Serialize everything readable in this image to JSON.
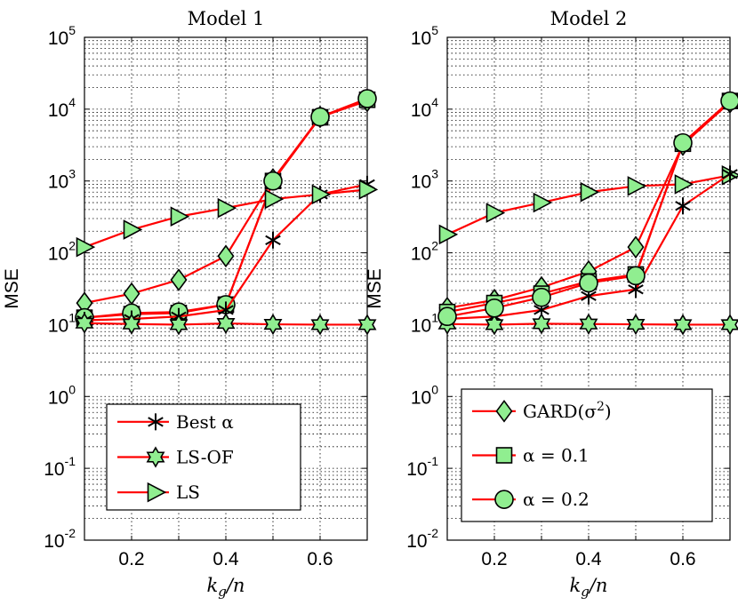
{
  "chart_data": [
    {
      "type": "line",
      "title": "Model 1",
      "xlabel": "k_g/n",
      "ylabel": "MSE",
      "yscale": "log",
      "xlim": [
        0.1,
        0.7
      ],
      "ylim": [
        0.01,
        100000
      ],
      "xticks": [
        "0.2",
        "0.4",
        "0.6"
      ],
      "yticks": [
        {
          "base": "10",
          "exp": "-2"
        },
        {
          "base": "10",
          "exp": "-1"
        },
        {
          "base": "10",
          "exp": "0"
        },
        {
          "base": "10",
          "exp": "1"
        },
        {
          "base": "10",
          "exp": "2"
        },
        {
          "base": "10",
          "exp": "3"
        },
        {
          "base": "10",
          "exp": "4"
        },
        {
          "base": "10",
          "exp": "5"
        }
      ],
      "grid": true,
      "legend_position": "bottom",
      "x": [
        0.1,
        0.2,
        0.3,
        0.4,
        0.5,
        0.6,
        0.7
      ],
      "series": [
        {
          "name": "GARD(σ²)",
          "marker": "diamond",
          "in_legend": false,
          "values": [
            20,
            27,
            42,
            90,
            1050,
            7800,
            13000
          ]
        },
        {
          "name": "α = 0.1",
          "marker": "square",
          "in_legend": false,
          "values": [
            12.5,
            14,
            14.5,
            19,
            1000,
            7700,
            13500
          ]
        },
        {
          "name": "α = 0.2",
          "marker": "circle",
          "in_legend": false,
          "values": [
            12.5,
            14.5,
            15,
            19,
            1000,
            7800,
            14000
          ]
        },
        {
          "name": "Best α",
          "marker": "asterisk",
          "in_legend": true,
          "values": [
            11.5,
            12,
            13,
            16,
            150,
            650,
            900
          ]
        },
        {
          "name": "LS-OF",
          "marker": "hexagram",
          "in_legend": true,
          "values": [
            10.5,
            10.2,
            10,
            10.4,
            10.1,
            10,
            10
          ]
        },
        {
          "name": "LS",
          "marker": "triangle",
          "in_legend": true,
          "values": [
            120,
            210,
            320,
            420,
            560,
            650,
            760
          ]
        }
      ],
      "legend_entries": [
        "Best α",
        "LS-OF",
        "LS"
      ]
    },
    {
      "type": "line",
      "title": "Model 2",
      "xlabel": "k_g/n",
      "ylabel": "MSE",
      "yscale": "log",
      "xlim": [
        0.1,
        0.7
      ],
      "ylim": [
        0.01,
        100000
      ],
      "xticks": [
        "0.2",
        "0.4",
        "0.6"
      ],
      "yticks": [
        {
          "base": "10",
          "exp": "-2"
        },
        {
          "base": "10",
          "exp": "-1"
        },
        {
          "base": "10",
          "exp": "0"
        },
        {
          "base": "10",
          "exp": "1"
        },
        {
          "base": "10",
          "exp": "2"
        },
        {
          "base": "10",
          "exp": "3"
        },
        {
          "base": "10",
          "exp": "4"
        },
        {
          "base": "10",
          "exp": "5"
        }
      ],
      "grid": true,
      "legend_position": "bottom",
      "x": [
        0.1,
        0.2,
        0.3,
        0.4,
        0.5,
        0.6,
        0.7
      ],
      "series": [
        {
          "name": "LS",
          "marker": "triangle",
          "in_legend": false,
          "values": [
            180,
            360,
            500,
            700,
            850,
            900,
            1200
          ]
        },
        {
          "name": "Best α",
          "marker": "asterisk",
          "in_legend": false,
          "values": [
            12,
            13,
            16,
            25,
            31,
            450,
            1250
          ]
        },
        {
          "name": "LS-OF",
          "marker": "hexagram",
          "in_legend": false,
          "values": [
            10.2,
            10,
            10.3,
            10.2,
            10.1,
            10,
            10
          ]
        },
        {
          "name": "GARD(σ²)",
          "marker": "diamond",
          "in_legend": true,
          "values": [
            17,
            22,
            33,
            55,
            120,
            3200,
            12500
          ]
        },
        {
          "name": "α = 0.1",
          "marker": "square",
          "in_legend": true,
          "values": [
            15,
            20,
            27,
            40,
            50,
            3300,
            13000
          ]
        },
        {
          "name": "α = 0.2",
          "marker": "circle",
          "in_legend": true,
          "values": [
            13,
            17,
            24,
            38,
            48,
            3400,
            13000
          ]
        }
      ],
      "legend_entries": [
        "GARD(σ²)",
        "α = 0.1",
        "α = 0.2"
      ]
    }
  ]
}
